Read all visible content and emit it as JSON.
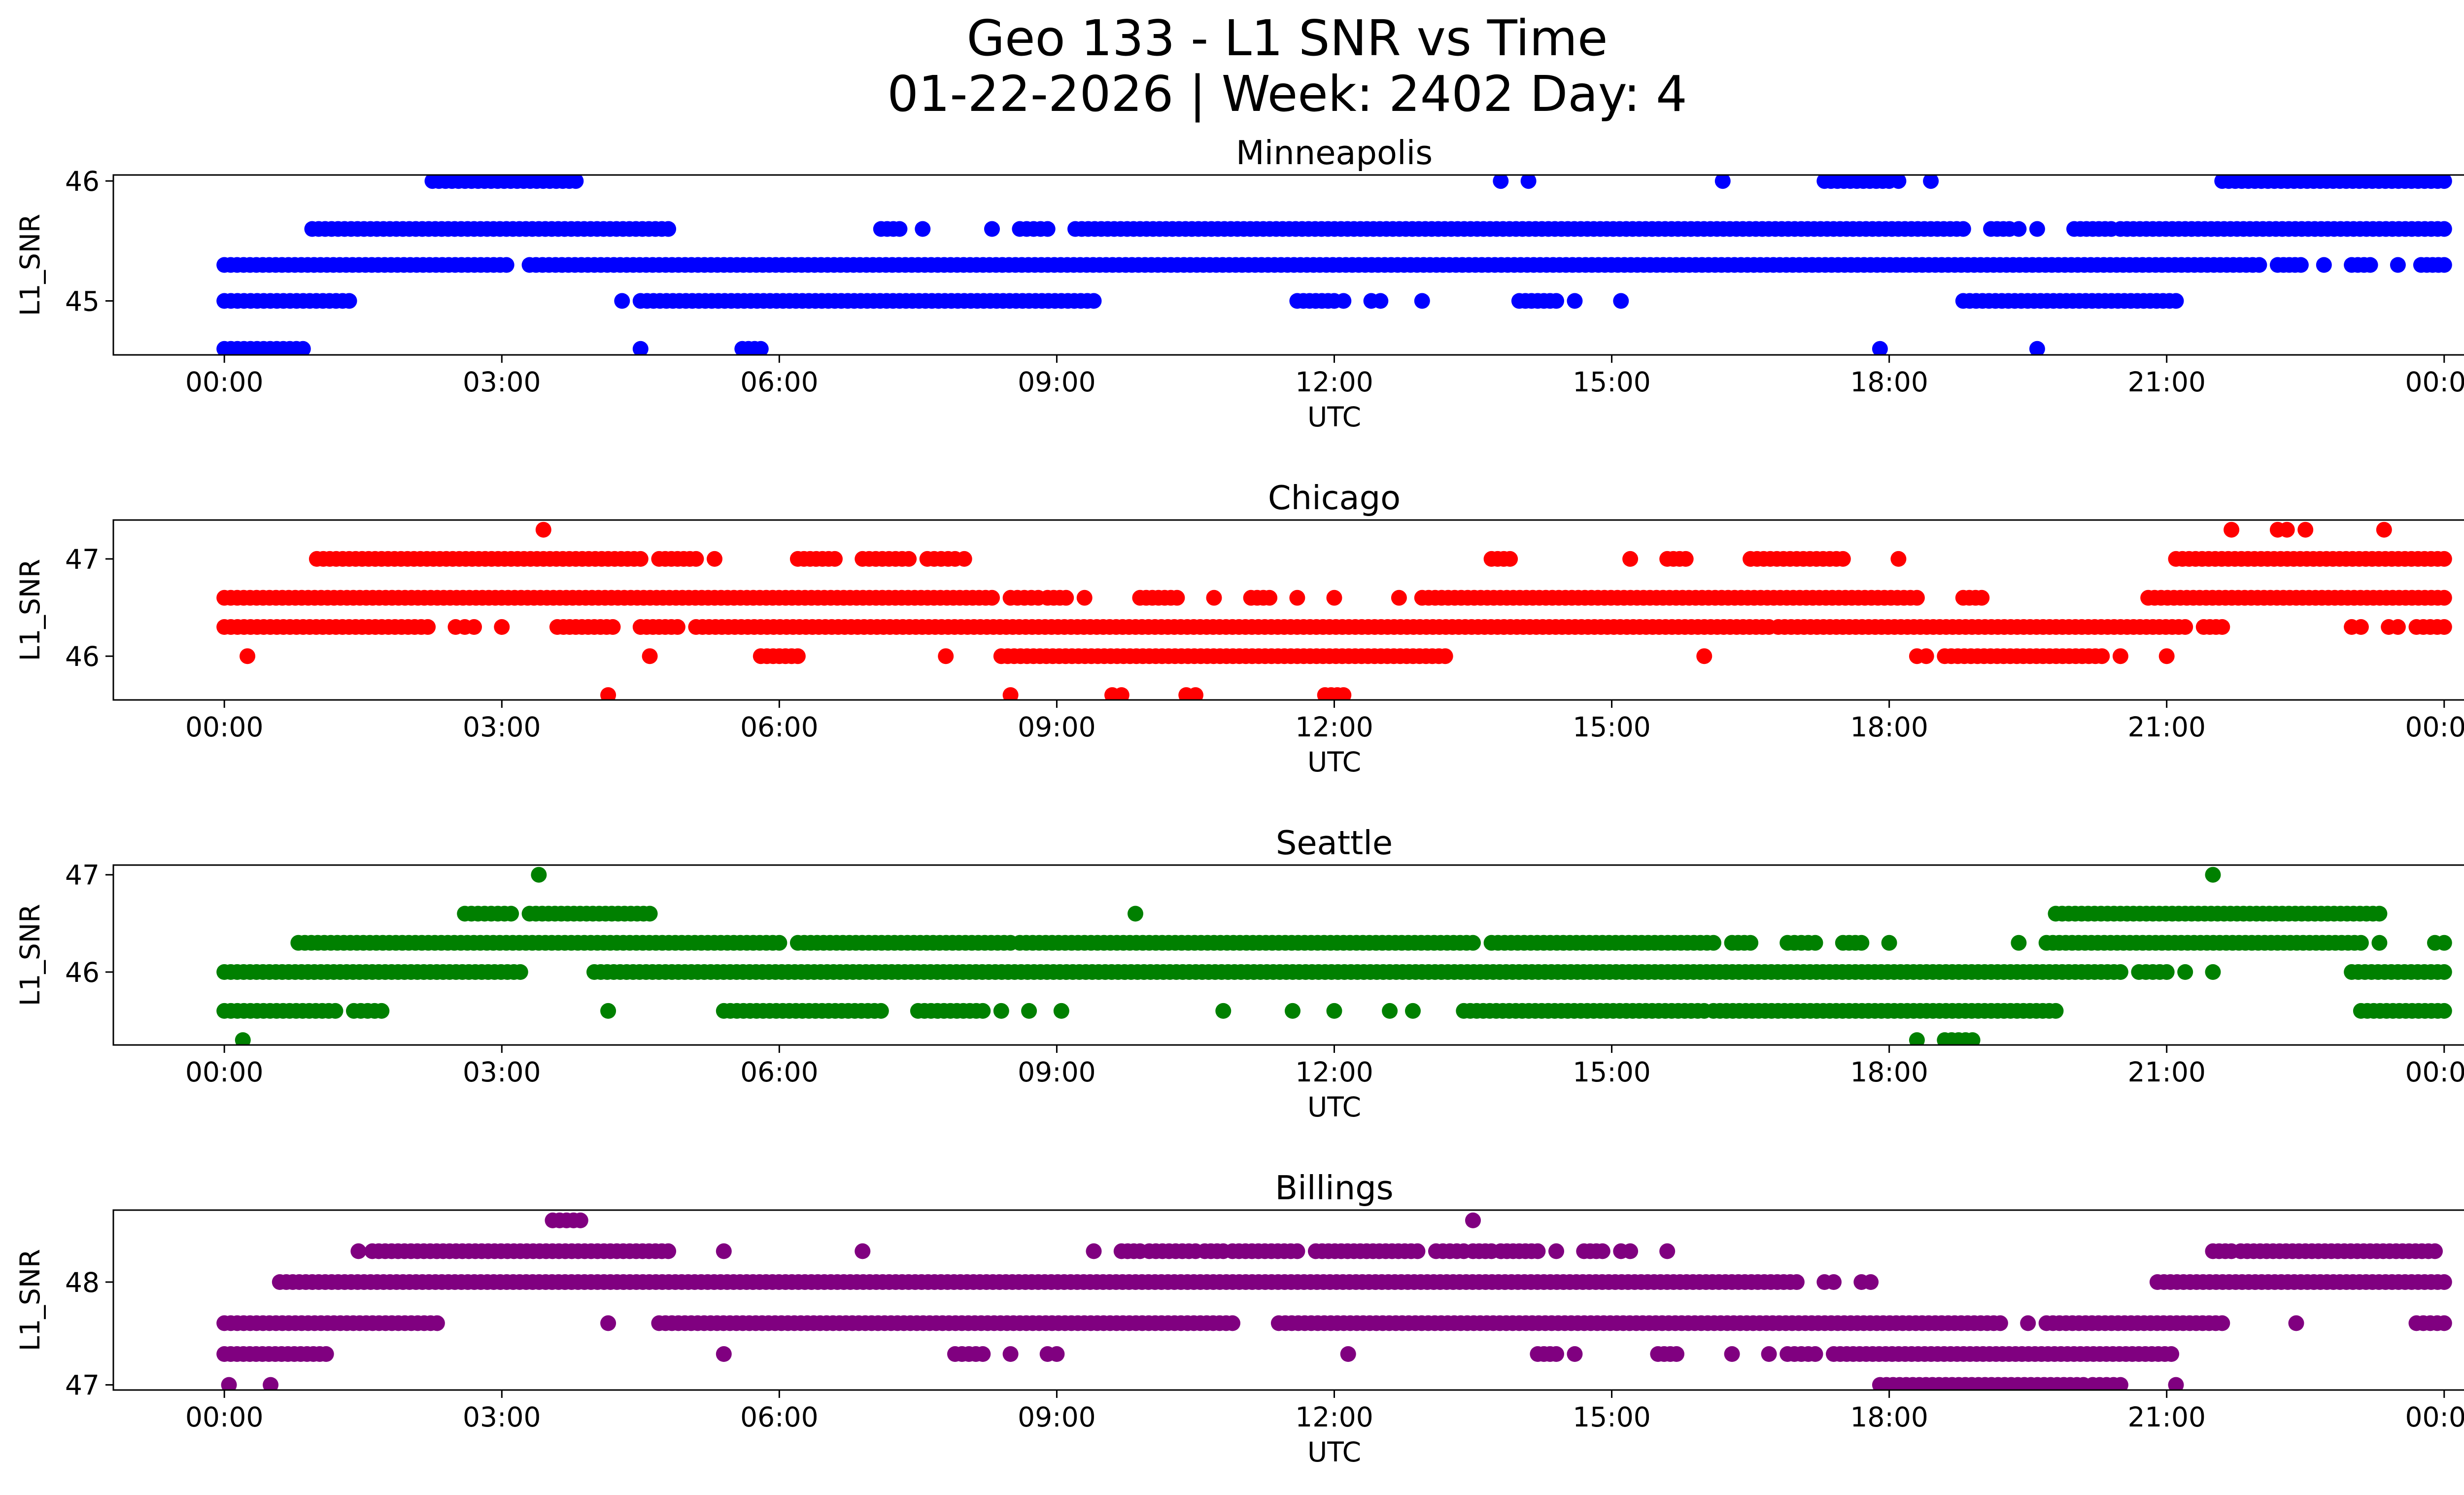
{
  "chart_data": {
    "type": "scatter",
    "title": "Geo 133 - L1 SNR vs Time",
    "subtitle": "01-22-2026 | Week: 2402 Day: 4",
    "xticks": [
      "00:00",
      "03:00",
      "06:00",
      "09:00",
      "12:00",
      "15:00",
      "18:00",
      "21:00",
      "00:00"
    ],
    "xlim_hours": [
      -1.2,
      25.2
    ],
    "panels": [
      {
        "title": "Minneapolis",
        "color": "#0000ff",
        "xlabel": "UTC",
        "ylabel": "L1_SNR",
        "ylim": [
          44.55,
          46.05
        ],
        "yticks": [
          45,
          46
        ],
        "levels": [
          {
            "y": 46.0,
            "segments": [
              [
                2.25,
                3.8
              ],
              [
                13.8,
                13.8
              ],
              [
                14.1,
                14.1
              ],
              [
                16.2,
                16.2
              ],
              [
                17.3,
                18.0
              ],
              [
                18.1,
                18.1
              ],
              [
                18.45,
                18.45
              ],
              [
                21.6,
                24.0
              ]
            ]
          },
          {
            "y": 45.6,
            "segments": [
              [
                0.95,
                4.8
              ],
              [
                7.1,
                7.3
              ],
              [
                7.55,
                7.55
              ],
              [
                8.3,
                8.3
              ],
              [
                8.6,
                8.9
              ],
              [
                9.2,
                18.8
              ],
              [
                19.1,
                19.3
              ],
              [
                19.4,
                19.4
              ],
              [
                19.6,
                19.6
              ],
              [
                20.0,
                20.4
              ],
              [
                20.5,
                24.0
              ]
            ]
          },
          {
            "y": 45.3,
            "segments": [
              [
                0.0,
                3.05
              ],
              [
                3.3,
                22.0
              ],
              [
                22.2,
                22.45
              ],
              [
                22.7,
                22.7
              ],
              [
                23.0,
                23.2
              ],
              [
                23.5,
                23.5
              ],
              [
                23.75,
                24.0
              ]
            ]
          },
          {
            "y": 45.0,
            "segments": [
              [
                0.0,
                1.35
              ],
              [
                4.3,
                4.3
              ],
              [
                4.5,
                9.4
              ],
              [
                11.6,
                12.0
              ],
              [
                12.1,
                12.1
              ],
              [
                12.4,
                12.5
              ],
              [
                12.95,
                12.95
              ],
              [
                14.0,
                14.4
              ],
              [
                14.6,
                14.6
              ],
              [
                15.1,
                15.1
              ],
              [
                18.8,
                21.1
              ]
            ]
          },
          {
            "y": 44.6,
            "segments": [
              [
                0.0,
                0.85
              ],
              [
                4.5,
                4.5
              ],
              [
                5.6,
                5.8
              ],
              [
                17.9,
                17.9
              ],
              [
                19.6,
                19.6
              ]
            ]
          }
        ]
      },
      {
        "title": "Chicago",
        "color": "#ff0000",
        "xlabel": "UTC",
        "ylabel": "L1_SNR",
        "ylim": [
          45.55,
          47.4
        ],
        "yticks": [
          46,
          47
        ],
        "levels": [
          {
            "y": 47.3,
            "segments": [
              [
                3.45,
                3.45
              ],
              [
                21.7,
                21.7
              ],
              [
                22.2,
                22.3
              ],
              [
                22.5,
                22.5
              ],
              [
                23.35,
                23.35
              ]
            ]
          },
          {
            "y": 47.0,
            "segments": [
              [
                1.0,
                4.5
              ],
              [
                4.7,
                5.1
              ],
              [
                5.3,
                5.3
              ],
              [
                6.2,
                6.6
              ],
              [
                6.9,
                7.4
              ],
              [
                7.6,
                7.9
              ],
              [
                8.0,
                8.0
              ],
              [
                13.7,
                13.9
              ],
              [
                15.2,
                15.2
              ],
              [
                15.6,
                15.8
              ],
              [
                16.5,
                17.5
              ],
              [
                18.1,
                18.1
              ],
              [
                21.1,
                24.0
              ]
            ]
          },
          {
            "y": 46.6,
            "segments": [
              [
                0.0,
                8.3
              ],
              [
                8.5,
                8.8
              ],
              [
                8.9,
                9.1
              ],
              [
                9.3,
                9.3
              ],
              [
                9.9,
                10.3
              ],
              [
                10.7,
                10.7
              ],
              [
                11.1,
                11.3
              ],
              [
                11.6,
                11.6
              ],
              [
                12.0,
                12.0
              ],
              [
                12.7,
                12.7
              ],
              [
                12.95,
                18.3
              ],
              [
                18.8,
                19.0
              ],
              [
                20.8,
                24.0
              ]
            ]
          },
          {
            "y": 46.3,
            "segments": [
              [
                0.0,
                2.2
              ],
              [
                2.5,
                2.5
              ],
              [
                2.6,
                2.7
              ],
              [
                3.0,
                3.0
              ],
              [
                3.6,
                4.2
              ],
              [
                4.5,
                4.9
              ],
              [
                5.1,
                16.7
              ],
              [
                16.8,
                21.2
              ],
              [
                21.4,
                21.6
              ],
              [
                23.0,
                23.1
              ],
              [
                23.4,
                23.5
              ],
              [
                23.7,
                24.0
              ]
            ]
          },
          {
            "y": 46.0,
            "segments": [
              [
                0.25,
                0.25
              ],
              [
                4.6,
                4.6
              ],
              [
                5.8,
                6.2
              ],
              [
                7.8,
                7.8
              ],
              [
                8.4,
                13.2
              ],
              [
                16.0,
                16.0
              ],
              [
                18.3,
                18.4
              ],
              [
                18.6,
                20.3
              ],
              [
                20.5,
                20.5
              ],
              [
                21.0,
                21.0
              ]
            ]
          },
          {
            "y": 45.6,
            "segments": [
              [
                4.15,
                4.15
              ],
              [
                8.5,
                8.5
              ],
              [
                9.6,
                9.7
              ],
              [
                10.4,
                10.5
              ],
              [
                11.9,
                12.1
              ]
            ]
          }
        ]
      },
      {
        "title": "Seattle",
        "color": "#008000",
        "xlabel": "UTC",
        "ylabel": "L1_SNR",
        "ylim": [
          45.25,
          47.1
        ],
        "yticks": [
          46,
          47
        ],
        "levels": [
          {
            "y": 47.0,
            "segments": [
              [
                3.4,
                3.4
              ],
              [
                21.5,
                21.5
              ]
            ]
          },
          {
            "y": 46.6,
            "segments": [
              [
                2.6,
                3.1
              ],
              [
                3.3,
                4.6
              ],
              [
                9.85,
                9.85
              ],
              [
                19.8,
                23.3
              ]
            ]
          },
          {
            "y": 46.3,
            "segments": [
              [
                0.8,
                6.0
              ],
              [
                6.2,
                8.5
              ],
              [
                8.6,
                13.5
              ],
              [
                13.7,
                16.1
              ],
              [
                16.3,
                16.5
              ],
              [
                16.9,
                17.2
              ],
              [
                17.5,
                17.7
              ],
              [
                18.0,
                18.0
              ],
              [
                19.4,
                19.4
              ],
              [
                19.7,
                23.1
              ],
              [
                23.3,
                23.3
              ],
              [
                23.9,
                24.0
              ]
            ]
          },
          {
            "y": 46.0,
            "segments": [
              [
                0.0,
                3.2
              ],
              [
                4.0,
                20.5
              ],
              [
                20.7,
                21.0
              ],
              [
                21.2,
                21.2
              ],
              [
                21.5,
                21.5
              ],
              [
                23.0,
                24.0
              ]
            ]
          },
          {
            "y": 45.6,
            "segments": [
              [
                0.0,
                1.2
              ],
              [
                1.4,
                1.7
              ],
              [
                4.15,
                4.15
              ],
              [
                5.4,
                7.1
              ],
              [
                7.5,
                8.2
              ],
              [
                8.4,
                8.4
              ],
              [
                8.7,
                8.7
              ],
              [
                9.05,
                9.05
              ],
              [
                10.8,
                10.8
              ],
              [
                11.55,
                11.55
              ],
              [
                12.0,
                12.0
              ],
              [
                12.6,
                12.6
              ],
              [
                12.85,
                12.85
              ],
              [
                13.4,
                16.0
              ],
              [
                16.1,
                19.8
              ],
              [
                23.1,
                24.0
              ]
            ]
          },
          {
            "y": 45.3,
            "segments": [
              [
                0.2,
                0.2
              ],
              [
                18.3,
                18.3
              ],
              [
                18.6,
                18.9
              ]
            ]
          }
        ]
      },
      {
        "title": "Billings",
        "color": "#800080",
        "xlabel": "UTC",
        "ylabel": "L1_SNR",
        "ylim": [
          46.95,
          48.7
        ],
        "yticks": [
          47,
          48
        ],
        "levels": [
          {
            "y": 48.6,
            "segments": [
              [
                3.55,
                3.85
              ],
              [
                13.5,
                13.5
              ]
            ]
          },
          {
            "y": 48.3,
            "segments": [
              [
                1.45,
                1.45
              ],
              [
                1.6,
                4.8
              ],
              [
                5.4,
                5.4
              ],
              [
                6.9,
                6.9
              ],
              [
                9.4,
                9.4
              ],
              [
                9.7,
                9.9
              ],
              [
                10.0,
                10.5
              ],
              [
                10.6,
                10.8
              ],
              [
                10.9,
                11.6
              ],
              [
                11.8,
                12.9
              ],
              [
                13.1,
                13.4
              ],
              [
                13.5,
                13.7
              ],
              [
                13.8,
                14.2
              ],
              [
                14.4,
                14.4
              ],
              [
                14.7,
                14.9
              ],
              [
                15.1,
                15.2
              ],
              [
                15.6,
                15.6
              ],
              [
                21.5,
                21.7
              ],
              [
                21.8,
                23.9
              ]
            ]
          },
          {
            "y": 48.0,
            "segments": [
              [
                0.6,
                17.0
              ],
              [
                17.3,
                17.4
              ],
              [
                17.7,
                17.8
              ],
              [
                20.9,
                24.0
              ]
            ]
          },
          {
            "y": 47.6,
            "segments": [
              [
                0.0,
                2.3
              ],
              [
                4.15,
                4.15
              ],
              [
                4.7,
                10.9
              ],
              [
                11.4,
                19.2
              ],
              [
                19.5,
                19.5
              ],
              [
                19.7,
                21.6
              ],
              [
                22.4,
                22.4
              ],
              [
                23.7,
                24.0
              ]
            ]
          },
          {
            "y": 47.3,
            "segments": [
              [
                0.0,
                1.1
              ],
              [
                5.4,
                5.4
              ],
              [
                7.9,
                8.2
              ],
              [
                8.5,
                8.5
              ],
              [
                8.9,
                9.0
              ],
              [
                12.15,
                12.15
              ],
              [
                14.2,
                14.4
              ],
              [
                14.6,
                14.6
              ],
              [
                15.5,
                15.7
              ],
              [
                16.3,
                16.3
              ],
              [
                16.7,
                16.7
              ],
              [
                16.9,
                17.2
              ],
              [
                17.4,
                21.05
              ]
            ]
          },
          {
            "y": 47.0,
            "segments": [
              [
                0.05,
                0.05
              ],
              [
                0.5,
                0.5
              ],
              [
                17.9,
                20.1
              ],
              [
                20.2,
                20.5
              ],
              [
                21.1,
                21.1
              ]
            ]
          }
        ]
      }
    ]
  }
}
